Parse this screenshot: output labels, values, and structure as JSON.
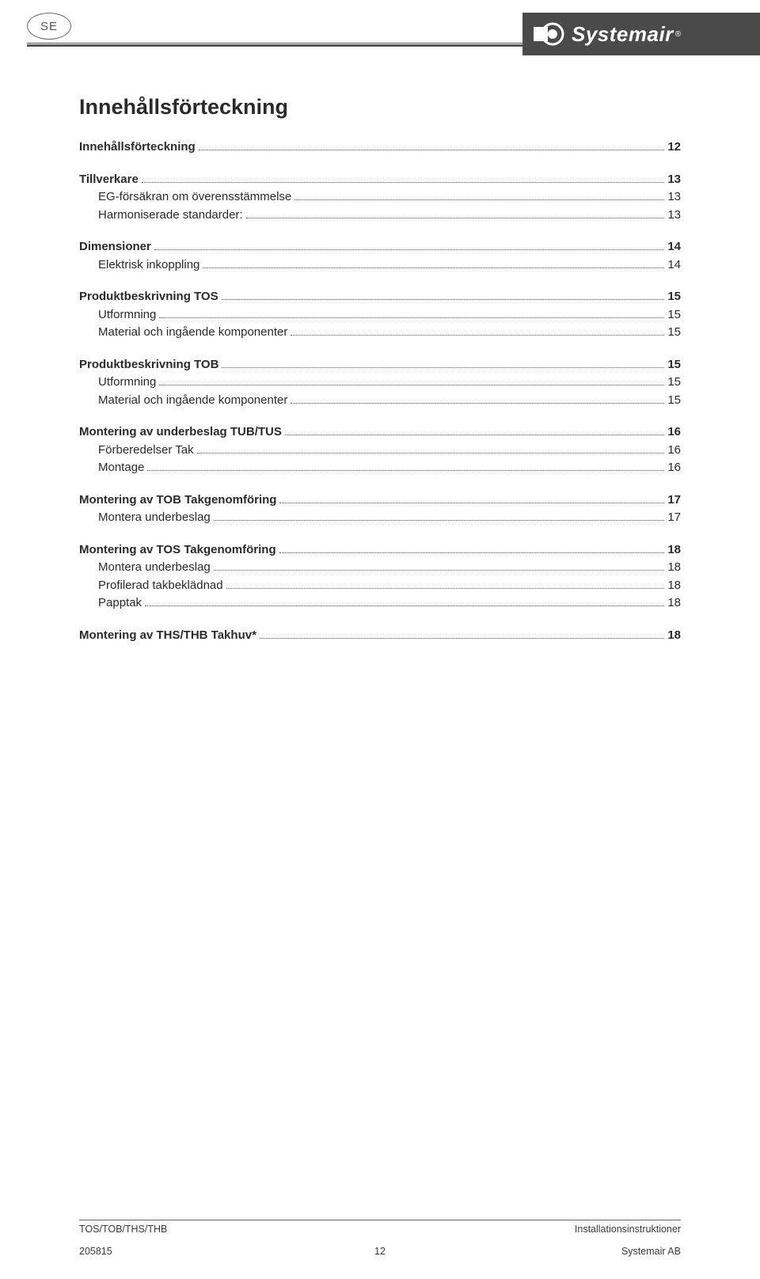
{
  "header": {
    "badge": "SE",
    "brand": "Systemair",
    "registered": "®"
  },
  "toc": {
    "title": "Innehållsförteckning",
    "groups": [
      [
        {
          "label": "Innehållsförteckning",
          "page": "12",
          "bold": true,
          "indent": false
        }
      ],
      [
        {
          "label": "Tillverkare",
          "page": "13",
          "bold": true,
          "indent": false
        },
        {
          "label": "EG-försäkran om överensstämmelse",
          "page": "13",
          "bold": false,
          "indent": true
        },
        {
          "label": "Harmoniserade standarder:",
          "page": "13",
          "bold": false,
          "indent": true
        }
      ],
      [
        {
          "label": "Dimensioner",
          "page": "14",
          "bold": true,
          "indent": false
        },
        {
          "label": "Elektrisk inkoppling",
          "page": "14",
          "bold": false,
          "indent": true
        }
      ],
      [
        {
          "label": "Produktbeskrivning TOS",
          "page": "15",
          "bold": true,
          "indent": false
        },
        {
          "label": "Utformning",
          "page": "15",
          "bold": false,
          "indent": true
        },
        {
          "label": "Material och ingående komponenter",
          "page": "15",
          "bold": false,
          "indent": true
        }
      ],
      [
        {
          "label": "Produktbeskrivning TOB",
          "page": "15",
          "bold": true,
          "indent": false
        },
        {
          "label": "Utformning",
          "page": "15",
          "bold": false,
          "indent": true
        },
        {
          "label": "Material och ingående komponenter",
          "page": "15",
          "bold": false,
          "indent": true
        }
      ],
      [
        {
          "label": "Montering av underbeslag TUB/TUS",
          "page": "16",
          "bold": true,
          "indent": false
        },
        {
          "label": "Förberedelser Tak",
          "page": "16",
          "bold": false,
          "indent": true
        },
        {
          "label": "Montage",
          "page": "16",
          "bold": false,
          "indent": true
        }
      ],
      [
        {
          "label": "Montering av TOB Takgenomföring",
          "page": "17",
          "bold": true,
          "indent": false
        },
        {
          "label": "Montera underbeslag",
          "page": "17",
          "bold": false,
          "indent": true
        }
      ],
      [
        {
          "label": "Montering av TOS Takgenomföring",
          "page": "18",
          "bold": true,
          "indent": false
        },
        {
          "label": "Montera underbeslag",
          "page": "18",
          "bold": false,
          "indent": true
        },
        {
          "label": "Profilerad takbeklädnad",
          "page": "18",
          "bold": false,
          "indent": true
        },
        {
          "label": "Papptak",
          "page": "18",
          "bold": false,
          "indent": true
        }
      ],
      [
        {
          "label": "Montering av THS/THB Takhuv*",
          "page": "18",
          "bold": true,
          "indent": false
        }
      ]
    ]
  },
  "footer": {
    "line1_left": "TOS/TOB/THS/THB",
    "line1_right": "Installationsinstruktioner",
    "line2_left": "205815",
    "line2_center": "12",
    "line2_right": "Systemair AB"
  }
}
